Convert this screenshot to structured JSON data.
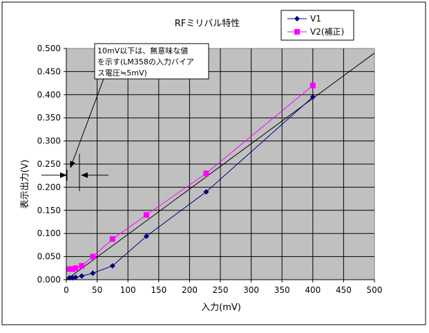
{
  "chart_data": {
    "type": "scatter",
    "title": "RFミリバル特性",
    "xlabel": "入力(mV)",
    "ylabel": "表示出力(V)",
    "xlim": [
      0,
      500
    ],
    "ylim": [
      0,
      0.5
    ],
    "x_ticks": [
      "0",
      "50",
      "100",
      "150",
      "200",
      "250",
      "300",
      "350",
      "400",
      "450",
      "500"
    ],
    "y_ticks": [
      "0.000",
      "0.050",
      "0.100",
      "0.150",
      "0.200",
      "0.250",
      "0.300",
      "0.350",
      "0.400",
      "0.450",
      "0.500"
    ],
    "grid": true,
    "plot_background": "#c0c0c0",
    "legend_position": "top-right",
    "series": [
      {
        "name": "V1",
        "color": "#000080",
        "marker": "diamond",
        "points": [
          [
            5,
            0.004
          ],
          [
            10,
            0.004
          ],
          [
            15,
            0.005
          ],
          [
            25,
            0.008
          ],
          [
            43,
            0.014
          ],
          [
            75,
            0.03
          ],
          [
            130,
            0.094
          ],
          [
            227,
            0.19
          ],
          [
            400,
            0.395
          ]
        ]
      },
      {
        "name": "V2(補正)",
        "color": "#ff00ff",
        "marker": "square",
        "points": [
          [
            5,
            0.023
          ],
          [
            10,
            0.023
          ],
          [
            15,
            0.025
          ],
          [
            25,
            0.03
          ],
          [
            43,
            0.05
          ],
          [
            75,
            0.088
          ],
          [
            130,
            0.14
          ],
          [
            227,
            0.23
          ],
          [
            400,
            0.42
          ]
        ]
      }
    ],
    "reference_line": {
      "points": [
        [
          0,
          0
        ],
        [
          500,
          0.49
        ]
      ],
      "color": "#000000"
    },
    "annotation": {
      "lines": [
        "10mV以下は、無意味な値",
        "を示す(LM358の入力バイア",
        "ス電圧≒5mV)"
      ]
    }
  }
}
